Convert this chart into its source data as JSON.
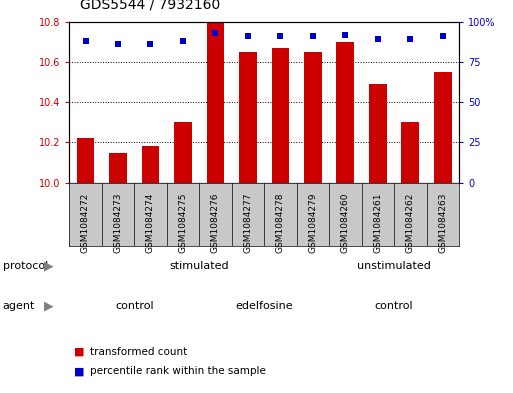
{
  "title": "GDS5544 / 7932160",
  "samples": [
    "GSM1084272",
    "GSM1084273",
    "GSM1084274",
    "GSM1084275",
    "GSM1084276",
    "GSM1084277",
    "GSM1084278",
    "GSM1084279",
    "GSM1084260",
    "GSM1084261",
    "GSM1084262",
    "GSM1084263"
  ],
  "bar_values": [
    10.22,
    10.15,
    10.18,
    10.3,
    10.8,
    10.65,
    10.67,
    10.65,
    10.7,
    10.49,
    10.3,
    10.55
  ],
  "dot_values": [
    88,
    86,
    86,
    88,
    93,
    91,
    91,
    91,
    92,
    89,
    89,
    91
  ],
  "ylim": [
    10,
    10.8
  ],
  "y2lim": [
    0,
    100
  ],
  "yticks": [
    10,
    10.2,
    10.4,
    10.6,
    10.8
  ],
  "y2ticks": [
    0,
    25,
    50,
    75,
    100
  ],
  "bar_color": "#cc0000",
  "dot_color": "#0000cc",
  "bar_width": 0.55,
  "protocol_labels": [
    "stimulated",
    "unstimulated"
  ],
  "agent_labels": [
    "control",
    "edelfosine",
    "control"
  ],
  "stim_color": "#b3ffb3",
  "unstim_color": "#33cc33",
  "ctrl_color": "#ffb3ff",
  "edel_color": "#dd77dd",
  "xtick_bg": "#c8c8c8",
  "legend_items": [
    "transformed count",
    "percentile rank within the sample"
  ],
  "legend_colors": [
    "#cc0000",
    "#0000cc"
  ],
  "title_fontsize": 10,
  "tick_fontsize": 7,
  "label_fontsize": 8,
  "row_fontsize": 8
}
